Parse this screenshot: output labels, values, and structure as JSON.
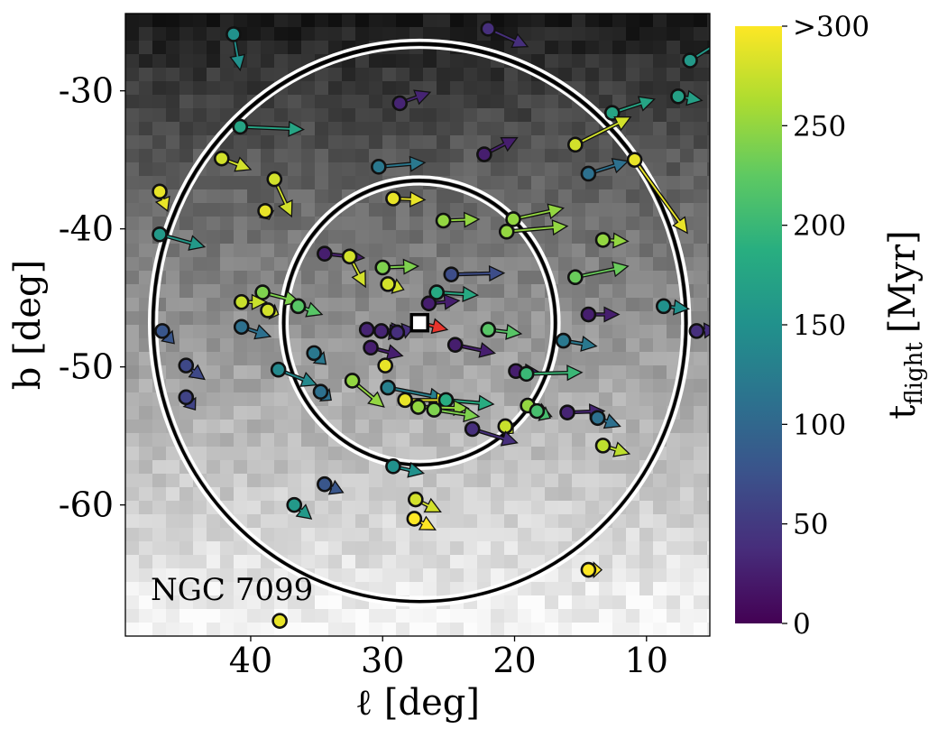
{
  "chart_data": {
    "type": "scatter",
    "title": "",
    "annotation": "NGC 7099",
    "xlabel": "ℓ [deg]",
    "ylabel": "b [deg]",
    "x_inverted": true,
    "xlim": [
      49.5,
      5.2
    ],
    "ylim": [
      -69.5,
      -24.4
    ],
    "x_ticks": [
      40,
      30,
      20,
      10
    ],
    "y_ticks": [
      -30,
      -40,
      -50,
      -60
    ],
    "x_tick_labels": [
      "40",
      "30",
      "20",
      "10"
    ],
    "y_tick_labels": [
      "-30",
      "-40",
      "-50",
      "-60"
    ],
    "grid": false,
    "colorbar": {
      "label_main": "t",
      "label_sub": "flight",
      "label_unit": "[Myr]",
      "min": 0,
      "max": 300,
      "ticks": [
        0,
        50,
        100,
        150,
        200,
        250,
        300
      ],
      "tick_labels": [
        "0",
        "50",
        "100",
        "150",
        "200",
        "250",
        ">300"
      ],
      "colormap": [
        "#440154",
        "#472d7b",
        "#3b528b",
        "#2c728e",
        "#21918c",
        "#28ae80",
        "#5ec962",
        "#addc30",
        "#fde725"
      ]
    },
    "cluster": {
      "l": 27.2,
      "b": -46.8,
      "arrow_to": [
        25.1,
        -47.3
      ],
      "arrow_color": "#e8342c"
    },
    "rings": [
      {
        "center": [
          27.2,
          -46.8
        ],
        "radius_l": 20.2,
        "radius_b": 20.2
      },
      {
        "center": [
          27.2,
          -46.8
        ],
        "radius_l": 10.3,
        "radius_b": 10.3
      }
    ],
    "points": [
      {
        "l": 41.3,
        "b": -25.9,
        "dl": -0.5,
        "db": -2.6,
        "t": 150
      },
      {
        "l": 22.0,
        "b": -25.5,
        "dl": -3.0,
        "db": -1.3,
        "t": 40
      },
      {
        "l": 6.7,
        "b": -27.8,
        "dl": -3.0,
        "db": 1.8,
        "t": 160
      },
      {
        "l": 28.7,
        "b": -30.9,
        "dl": -2.3,
        "db": 0.8,
        "t": 30
      },
      {
        "l": 7.6,
        "b": -30.4,
        "dl": -1.8,
        "db": -0.3,
        "t": 170
      },
      {
        "l": 12.6,
        "b": -31.6,
        "dl": -3.2,
        "db": 1.0,
        "t": 175
      },
      {
        "l": 40.8,
        "b": -32.6,
        "dl": -4.8,
        "db": -0.2,
        "t": 175
      },
      {
        "l": 15.4,
        "b": -33.9,
        "dl": -4.2,
        "db": 2.0,
        "t": 280
      },
      {
        "l": 22.3,
        "b": -34.6,
        "dl": -2.5,
        "db": 1.2,
        "t": 25
      },
      {
        "l": 30.3,
        "b": -35.5,
        "dl": -3.5,
        "db": 0.3,
        "t": 120
      },
      {
        "l": 14.4,
        "b": -36.0,
        "dl": -3.0,
        "db": 0.9,
        "t": 110
      },
      {
        "l": 10.9,
        "b": -35.0,
        "dl": -4.0,
        "db": -5.3,
        "t": 290
      },
      {
        "l": 42.2,
        "b": -34.9,
        "dl": -2.2,
        "db": -0.8,
        "t": 280
      },
      {
        "l": 38.2,
        "b": -36.4,
        "dl": -1.3,
        "db": -2.7,
        "t": 280
      },
      {
        "l": 46.9,
        "b": -37.3,
        "dl": -0.6,
        "db": -1.4,
        "t": 290
      },
      {
        "l": 38.9,
        "b": -38.7,
        "dl": -0.3,
        "db": -0.6,
        "t": 290
      },
      {
        "l": 29.2,
        "b": -37.8,
        "dl": -2.4,
        "db": -0.1,
        "t": 290
      },
      {
        "l": 25.4,
        "b": -39.4,
        "dl": -2.7,
        "db": 0.1,
        "t": 250
      },
      {
        "l": 20.1,
        "b": -39.3,
        "dl": -3.8,
        "db": 0.8,
        "t": 250
      },
      {
        "l": 20.6,
        "b": -40.2,
        "dl": -4.6,
        "db": 0.4,
        "t": 250
      },
      {
        "l": 46.9,
        "b": -40.4,
        "dl": -3.4,
        "db": -0.9,
        "t": 160
      },
      {
        "l": 13.3,
        "b": -40.8,
        "dl": -1.9,
        "db": -0.1,
        "t": 250
      },
      {
        "l": 34.4,
        "b": -41.8,
        "dl": -3.0,
        "db": -0.3,
        "t": 25
      },
      {
        "l": 32.5,
        "b": -42.0,
        "dl": -1.2,
        "db": -2.2,
        "t": 280
      },
      {
        "l": 30.0,
        "b": -42.8,
        "dl": -2.7,
        "db": 0.1,
        "t": 240
      },
      {
        "l": 29.6,
        "b": -44.0,
        "dl": -1.2,
        "db": -0.4,
        "t": 280
      },
      {
        "l": 24.8,
        "b": -43.3,
        "dl": -4.0,
        "db": 0.1,
        "t": 70
      },
      {
        "l": 15.4,
        "b": -43.5,
        "dl": -4.0,
        "db": 0.8,
        "t": 230
      },
      {
        "l": 25.9,
        "b": -44.6,
        "dl": -3.1,
        "db": -0.2,
        "t": 180
      },
      {
        "l": 26.5,
        "b": -45.4,
        "dl": -2.3,
        "db": 0.2,
        "t": 25
      },
      {
        "l": 39.1,
        "b": -44.6,
        "dl": -2.8,
        "db": -0.7,
        "t": 240
      },
      {
        "l": 40.7,
        "b": -45.3,
        "dl": -1.9,
        "db": 0.0,
        "t": 275
      },
      {
        "l": 38.7,
        "b": -45.9,
        "dl": -0.8,
        "db": -0.3,
        "t": 280
      },
      {
        "l": 36.4,
        "b": -45.6,
        "dl": -1.8,
        "db": -0.6,
        "t": 220
      },
      {
        "l": 14.4,
        "b": -46.2,
        "dl": -2.3,
        "db": 0.0,
        "t": 25
      },
      {
        "l": 8.7,
        "b": -45.6,
        "dl": -1.9,
        "db": -0.2,
        "t": 150
      },
      {
        "l": 6.2,
        "b": -47.4,
        "dl": -1.5,
        "db": 0.1,
        "t": 40
      },
      {
        "l": 31.2,
        "b": -47.3,
        "dl": -2.8,
        "db": -0.3,
        "t": 30
      },
      {
        "l": 30.1,
        "b": -47.4,
        "dl": -1.9,
        "db": 0.1,
        "t": 30
      },
      {
        "l": 28.9,
        "b": -47.5,
        "dl": -1.2,
        "db": 0.3,
        "t": 40
      },
      {
        "l": 22.0,
        "b": -47.3,
        "dl": -2.5,
        "db": -0.3,
        "t": 220
      },
      {
        "l": 46.7,
        "b": -47.4,
        "dl": -0.9,
        "db": -0.9,
        "t": 80
      },
      {
        "l": 40.7,
        "b": -47.1,
        "dl": -2.2,
        "db": -0.7,
        "t": 110
      },
      {
        "l": 16.3,
        "b": -48.1,
        "dl": -2.5,
        "db": -0.4,
        "t": 120
      },
      {
        "l": 24.5,
        "b": -48.4,
        "dl": -3.0,
        "db": -0.6,
        "t": 25
      },
      {
        "l": 30.9,
        "b": -48.6,
        "dl": -2.4,
        "db": -0.6,
        "t": 25
      },
      {
        "l": 35.2,
        "b": -49.0,
        "dl": -0.9,
        "db": -0.8,
        "t": 120
      },
      {
        "l": 29.8,
        "b": -49.9,
        "dl": -0.4,
        "db": 0.2,
        "t": 290
      },
      {
        "l": 44.9,
        "b": -49.9,
        "dl": -1.4,
        "db": -1.0,
        "t": 65
      },
      {
        "l": 37.9,
        "b": -50.2,
        "dl": -2.9,
        "db": -1.1,
        "t": 140
      },
      {
        "l": 19.9,
        "b": -50.3,
        "dl": -1.8,
        "db": -0.1,
        "t": 25
      },
      {
        "l": 19.1,
        "b": -50.5,
        "dl": -4.2,
        "db": 0.1,
        "t": 200
      },
      {
        "l": 32.3,
        "b": -51.0,
        "dl": -2.4,
        "db": -1.9,
        "t": 250
      },
      {
        "l": 29.6,
        "b": -51.5,
        "dl": -4.3,
        "db": -0.8,
        "t": 130
      },
      {
        "l": 34.7,
        "b": -51.8,
        "dl": -0.8,
        "db": -0.6,
        "t": 110
      },
      {
        "l": 44.9,
        "b": -52.2,
        "dl": -0.7,
        "db": -0.9,
        "t": 60
      },
      {
        "l": 28.3,
        "b": -52.4,
        "dl": -3.5,
        "db": 0.0,
        "t": 290
      },
      {
        "l": 25.2,
        "b": -52.4,
        "dl": -3.6,
        "db": -0.3,
        "t": 185
      },
      {
        "l": 27.3,
        "b": -52.9,
        "dl": -3.8,
        "db": -0.1,
        "t": 250
      },
      {
        "l": 26.1,
        "b": -53.1,
        "dl": -3.4,
        "db": -0.5,
        "t": 240
      },
      {
        "l": 19.0,
        "b": -52.8,
        "dl": -1.8,
        "db": -0.8,
        "t": 250
      },
      {
        "l": 18.3,
        "b": -53.2,
        "dl": -1.0,
        "db": -0.5,
        "t": 210
      },
      {
        "l": 16.0,
        "b": -53.3,
        "dl": -2.8,
        "db": 0.1,
        "t": 30
      },
      {
        "l": 13.7,
        "b": -53.7,
        "dl": -1.7,
        "db": -0.6,
        "t": 110
      },
      {
        "l": 20.7,
        "b": -54.3,
        "dl": -0.6,
        "db": -0.5,
        "t": 275
      },
      {
        "l": 23.2,
        "b": -54.5,
        "dl": -3.4,
        "db": -1.0,
        "t": 40
      },
      {
        "l": 13.3,
        "b": -55.7,
        "dl": -2.0,
        "db": -0.6,
        "t": 270
      },
      {
        "l": 29.2,
        "b": -57.2,
        "dl": -2.3,
        "db": -0.5,
        "t": 150
      },
      {
        "l": 34.4,
        "b": -58.5,
        "dl": -1.4,
        "db": -0.6,
        "t": 80
      },
      {
        "l": 36.7,
        "b": -60.0,
        "dl": -1.3,
        "db": -1.0,
        "t": 160
      },
      {
        "l": 27.5,
        "b": -59.6,
        "dl": -1.9,
        "db": -0.9,
        "t": 280
      },
      {
        "l": 27.6,
        "b": -61.0,
        "dl": -1.6,
        "db": -0.8,
        "t": 300
      },
      {
        "l": 14.4,
        "b": -64.7,
        "dl": -1.0,
        "db": 0.0,
        "t": 300
      },
      {
        "l": 37.8,
        "b": -68.4,
        "dl": 0.0,
        "db": 0.0,
        "t": 290
      }
    ]
  }
}
